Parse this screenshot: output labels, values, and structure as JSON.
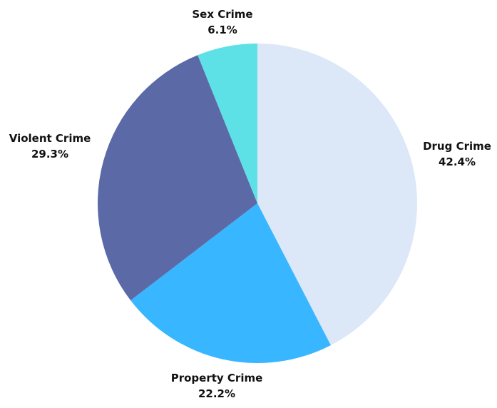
{
  "chart_data": {
    "type": "pie",
    "title": "",
    "start": "12 o'clock",
    "direction": "clockwise",
    "slices": [
      {
        "label": "Drug Crime",
        "value": 42.4,
        "value_label": "42.4%",
        "color": "#dce7f8"
      },
      {
        "label": "Property Crime",
        "value": 22.2,
        "value_label": "22.2%",
        "color": "#38b6ff"
      },
      {
        "label": "Violent Crime",
        "value": 29.3,
        "value_label": "29.3%",
        "color": "#5b6aa7"
      },
      {
        "label": "Sex Crime",
        "value": 6.1,
        "value_label": "6.1%",
        "color": "#5ee1e6"
      }
    ]
  }
}
